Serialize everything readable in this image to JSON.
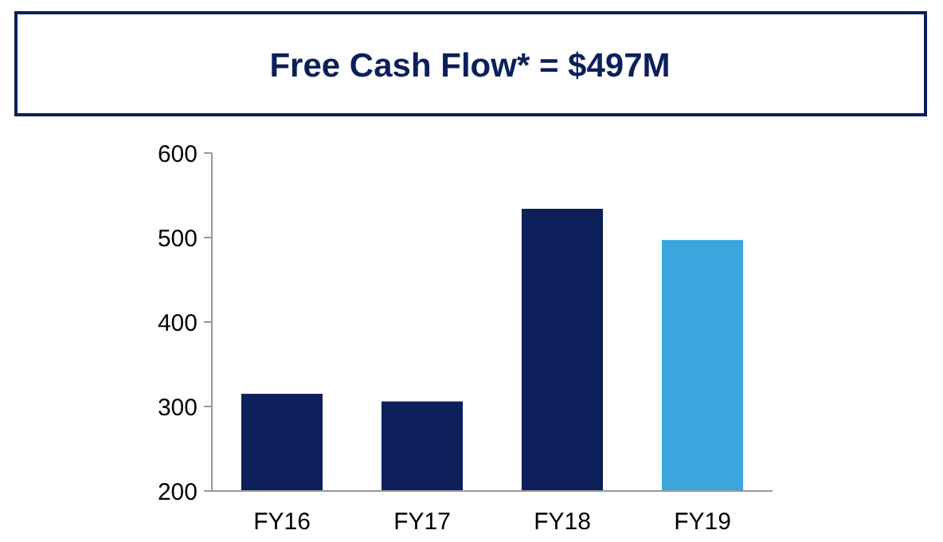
{
  "chart_data": {
    "type": "bar",
    "title": "Free Cash Flow* = $497M",
    "categories": [
      "FY16",
      "FY17",
      "FY18",
      "FY19"
    ],
    "values": [
      315,
      306,
      534,
      497
    ],
    "colors": [
      "#0c1f5b",
      "#0c1f5b",
      "#0c1f5b",
      "#3ba6dd"
    ],
    "ylim": [
      200,
      600
    ],
    "yticks": [
      200,
      300,
      400,
      500,
      600
    ],
    "grid": false
  }
}
